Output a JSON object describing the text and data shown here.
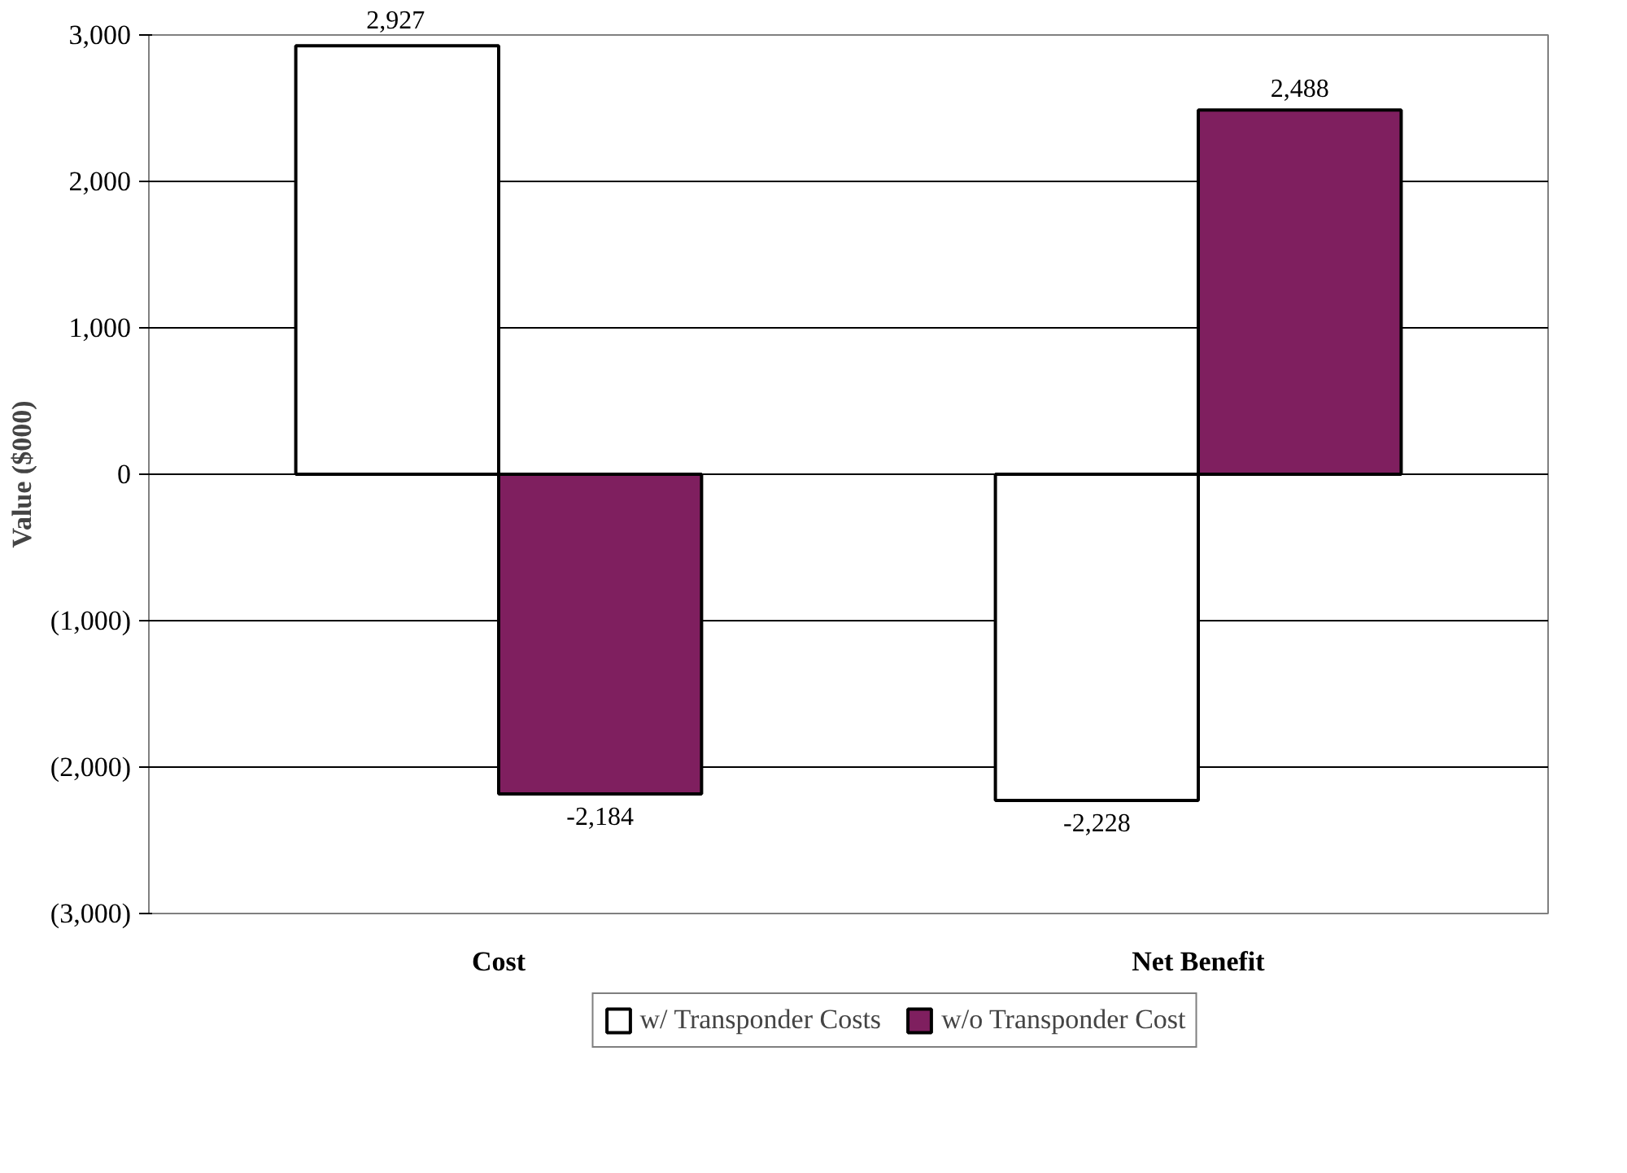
{
  "chart_data": {
    "type": "bar",
    "ylabel": "Value ($000)",
    "categories": [
      "Cost",
      "Net Benefit"
    ],
    "series": [
      {
        "name": "w/ Transponder Costs",
        "color": "#ffffff",
        "values": [
          2927,
          -2228
        ],
        "value_labels": [
          "2,927",
          "-2,228"
        ]
      },
      {
        "name": "w/o Transponder Cost",
        "color": "#7f1f5f",
        "values": [
          -2184,
          2488
        ],
        "value_labels": [
          "-2,184",
          "2,488"
        ]
      }
    ],
    "ylim": [
      -3000,
      3000
    ],
    "yticks": [
      {
        "value": -3000,
        "label": "(3,000)"
      },
      {
        "value": -2000,
        "label": "(2,000)"
      },
      {
        "value": -1000,
        "label": "(1,000)"
      },
      0,
      {
        "value": 1000,
        "label": "1,000"
      },
      {
        "value": 2000,
        "label": "2,000"
      },
      {
        "value": 3000,
        "label": "3,000"
      }
    ],
    "grid": "y",
    "legend": "bottom"
  }
}
